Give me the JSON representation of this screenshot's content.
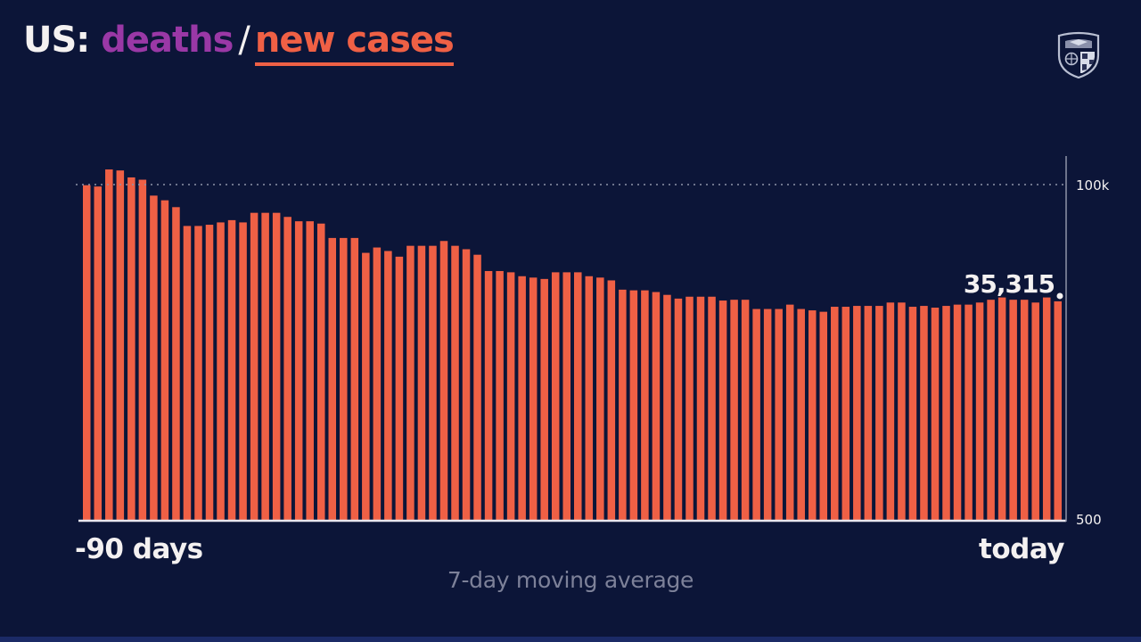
{
  "header": {
    "prefix": "US:",
    "tab_deaths": "deaths",
    "separator": "/",
    "tab_cases": "new cases"
  },
  "colors": {
    "background": "#0c1538",
    "cases": "#ef6045",
    "deaths": "#9a38a6",
    "text": "#f4f1f1",
    "muted": "#7d8199"
  },
  "logo": "university-shield-icon",
  "chart_data": {
    "type": "bar",
    "scale": "log",
    "ylim": [
      500,
      100000
    ],
    "y_ticks": [
      {
        "value": 100000,
        "label": "100k"
      },
      {
        "value": 500,
        "label": "500"
      }
    ],
    "grid_dotted_at": 100000,
    "x_start_label": "-90 days",
    "x_end_label": "today",
    "subtitle": "7-day moving average",
    "annotation": {
      "label": "35,315",
      "value": 35315
    },
    "values": [
      99000,
      97000,
      127000,
      125000,
      112000,
      108000,
      84000,
      78000,
      70000,
      52000,
      52000,
      53000,
      55000,
      57000,
      55000,
      64000,
      64000,
      64000,
      60000,
      56000,
      56000,
      54000,
      43000,
      43000,
      43000,
      34000,
      37000,
      35000,
      32000,
      38000,
      38000,
      38000,
      41000,
      38000,
      36000,
      33000,
      25500,
      25500,
      25000,
      23500,
      23000,
      22500,
      25000,
      25000,
      25000,
      23500,
      23000,
      22000,
      19000,
      18800,
      18800,
      18300,
      17500,
      16500,
      17000,
      17000,
      17000,
      16000,
      16200,
      16200,
      14000,
      14000,
      14000,
      15000,
      14000,
      13700,
      13400,
      14500,
      14500,
      14700,
      14700,
      14700,
      15500,
      15500,
      14500,
      14700,
      14300,
      14700,
      15000,
      15000,
      15500,
      16200,
      16800,
      16200,
      16200,
      15500,
      16800,
      15800
    ]
  }
}
